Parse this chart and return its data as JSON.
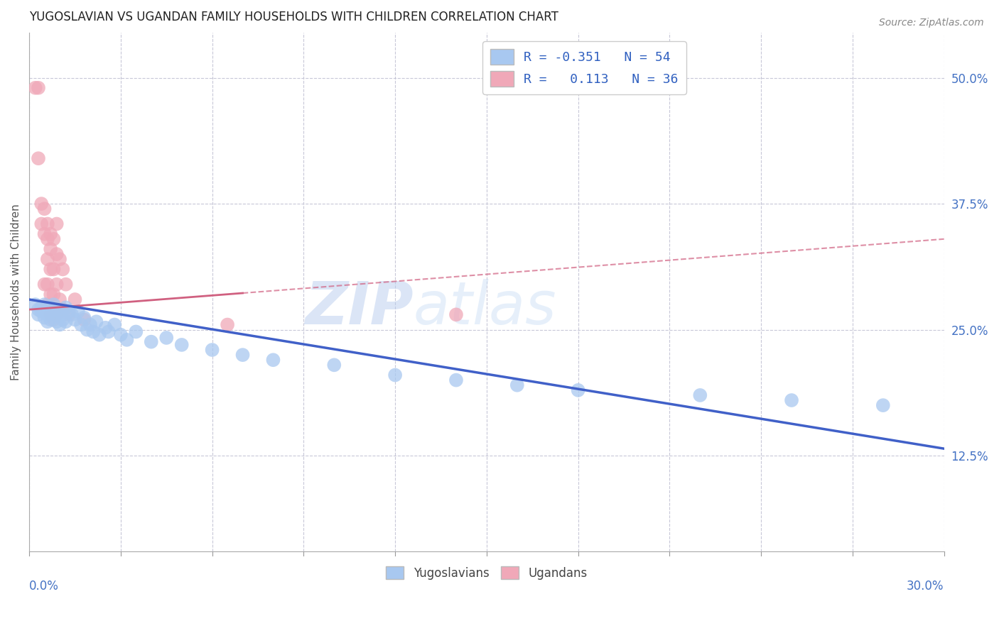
{
  "title": "YUGOSLAVIAN VS UGANDAN FAMILY HOUSEHOLDS WITH CHILDREN CORRELATION CHART",
  "source": "Source: ZipAtlas.com",
  "xlabel_bottom_left": "0.0%",
  "xlabel_bottom_right": "30.0%",
  "ylabel": "Family Households with Children",
  "right_yticks": [
    0.125,
    0.25,
    0.375,
    0.5
  ],
  "right_yticklabels": [
    "12.5%",
    "25.0%",
    "37.5%",
    "50.0%"
  ],
  "xmin": 0.0,
  "xmax": 0.3,
  "ymin": 0.03,
  "ymax": 0.545,
  "legend_blue_r": "R = -0.351",
  "legend_blue_n": "N = 54",
  "legend_pink_r": "R =  0.113",
  "legend_pink_n": "N = 36",
  "blue_color": "#a8c8f0",
  "pink_color": "#f0a8b8",
  "blue_line_color": "#4060c8",
  "pink_line_color": "#d06080",
  "blue_scatter": [
    [
      0.002,
      0.275
    ],
    [
      0.003,
      0.27
    ],
    [
      0.003,
      0.265
    ],
    [
      0.004,
      0.272
    ],
    [
      0.004,
      0.268
    ],
    [
      0.005,
      0.275
    ],
    [
      0.005,
      0.262
    ],
    [
      0.006,
      0.27
    ],
    [
      0.006,
      0.265
    ],
    [
      0.006,
      0.258
    ],
    [
      0.007,
      0.272
    ],
    [
      0.007,
      0.268
    ],
    [
      0.007,
      0.26
    ],
    [
      0.008,
      0.275
    ],
    [
      0.008,
      0.265
    ],
    [
      0.009,
      0.27
    ],
    [
      0.009,
      0.258
    ],
    [
      0.01,
      0.268
    ],
    [
      0.01,
      0.255
    ],
    [
      0.011,
      0.265
    ],
    [
      0.011,
      0.26
    ],
    [
      0.012,
      0.272
    ],
    [
      0.012,
      0.258
    ],
    [
      0.013,
      0.268
    ],
    [
      0.014,
      0.265
    ],
    [
      0.015,
      0.26
    ],
    [
      0.016,
      0.268
    ],
    [
      0.017,
      0.255
    ],
    [
      0.018,
      0.262
    ],
    [
      0.019,
      0.25
    ],
    [
      0.02,
      0.255
    ],
    [
      0.021,
      0.248
    ],
    [
      0.022,
      0.258
    ],
    [
      0.023,
      0.245
    ],
    [
      0.025,
      0.252
    ],
    [
      0.026,
      0.248
    ],
    [
      0.028,
      0.255
    ],
    [
      0.03,
      0.245
    ],
    [
      0.032,
      0.24
    ],
    [
      0.035,
      0.248
    ],
    [
      0.04,
      0.238
    ],
    [
      0.045,
      0.242
    ],
    [
      0.05,
      0.235
    ],
    [
      0.06,
      0.23
    ],
    [
      0.07,
      0.225
    ],
    [
      0.08,
      0.22
    ],
    [
      0.1,
      0.215
    ],
    [
      0.12,
      0.205
    ],
    [
      0.14,
      0.2
    ],
    [
      0.16,
      0.195
    ],
    [
      0.18,
      0.19
    ],
    [
      0.22,
      0.185
    ],
    [
      0.25,
      0.18
    ],
    [
      0.28,
      0.175
    ]
  ],
  "pink_scatter": [
    [
      0.002,
      0.49
    ],
    [
      0.003,
      0.49
    ],
    [
      0.003,
      0.42
    ],
    [
      0.004,
      0.375
    ],
    [
      0.004,
      0.355
    ],
    [
      0.005,
      0.37
    ],
    [
      0.005,
      0.345
    ],
    [
      0.005,
      0.295
    ],
    [
      0.006,
      0.355
    ],
    [
      0.006,
      0.34
    ],
    [
      0.006,
      0.32
    ],
    [
      0.006,
      0.295
    ],
    [
      0.006,
      0.275
    ],
    [
      0.007,
      0.345
    ],
    [
      0.007,
      0.33
    ],
    [
      0.007,
      0.31
    ],
    [
      0.007,
      0.285
    ],
    [
      0.007,
      0.265
    ],
    [
      0.008,
      0.34
    ],
    [
      0.008,
      0.31
    ],
    [
      0.008,
      0.285
    ],
    [
      0.008,
      0.26
    ],
    [
      0.009,
      0.355
    ],
    [
      0.009,
      0.325
    ],
    [
      0.009,
      0.295
    ],
    [
      0.009,
      0.265
    ],
    [
      0.01,
      0.32
    ],
    [
      0.01,
      0.28
    ],
    [
      0.011,
      0.31
    ],
    [
      0.011,
      0.27
    ],
    [
      0.012,
      0.295
    ],
    [
      0.013,
      0.265
    ],
    [
      0.015,
      0.28
    ],
    [
      0.018,
      0.26
    ],
    [
      0.065,
      0.255
    ],
    [
      0.14,
      0.265
    ]
  ],
  "watermark_zip": "ZIP",
  "watermark_atlas": "atlas",
  "background_color": "#ffffff",
  "grid_color": "#c8c8d8"
}
